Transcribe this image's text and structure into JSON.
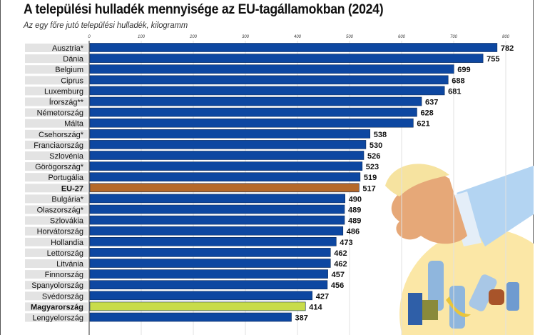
{
  "chart_data": {
    "type": "bar",
    "orientation": "horizontal",
    "title": "A települési hulladék mennyisége az EU-tagállamokban (2024)",
    "subtitle": "Az egy főre jutó települési hulladék, kilogramm",
    "xlim": [
      0,
      800
    ],
    "ticks": [
      "0",
      "100",
      "200",
      "300",
      "400",
      "500",
      "600",
      "700",
      "800"
    ],
    "grid": true,
    "categories": [
      "Ausztria*",
      "Dánia",
      "Belgium",
      "Ciprus",
      "Luxemburg",
      "Írország**",
      "Németország",
      "Málta",
      "Csehország*",
      "Franciaország",
      "Szlovénia",
      "Görögország*",
      "Portugália",
      "EU-27",
      "Bulgária*",
      "Olaszország*",
      "Szlovákia",
      "Horvátország",
      "Hollandia",
      "Lettország",
      "Litvánia",
      "Finnország",
      "Spanyolország",
      "Svédország",
      "Magyarország",
      "Lengyelország"
    ],
    "values": [
      782,
      755,
      699,
      688,
      681,
      637,
      628,
      621,
      538,
      530,
      526,
      523,
      519,
      517,
      490,
      489,
      489,
      486,
      473,
      462,
      462,
      457,
      456,
      427,
      414,
      387
    ],
    "highlight": {
      "EU-27": "#b5692a",
      "Magyarország": "#c8dc4a"
    },
    "bold_categories": [
      "EU-27",
      "Magyarország"
    ]
  },
  "colors": {
    "bar": "#0d47a1",
    "label_bg": "#e3e3e3"
  }
}
